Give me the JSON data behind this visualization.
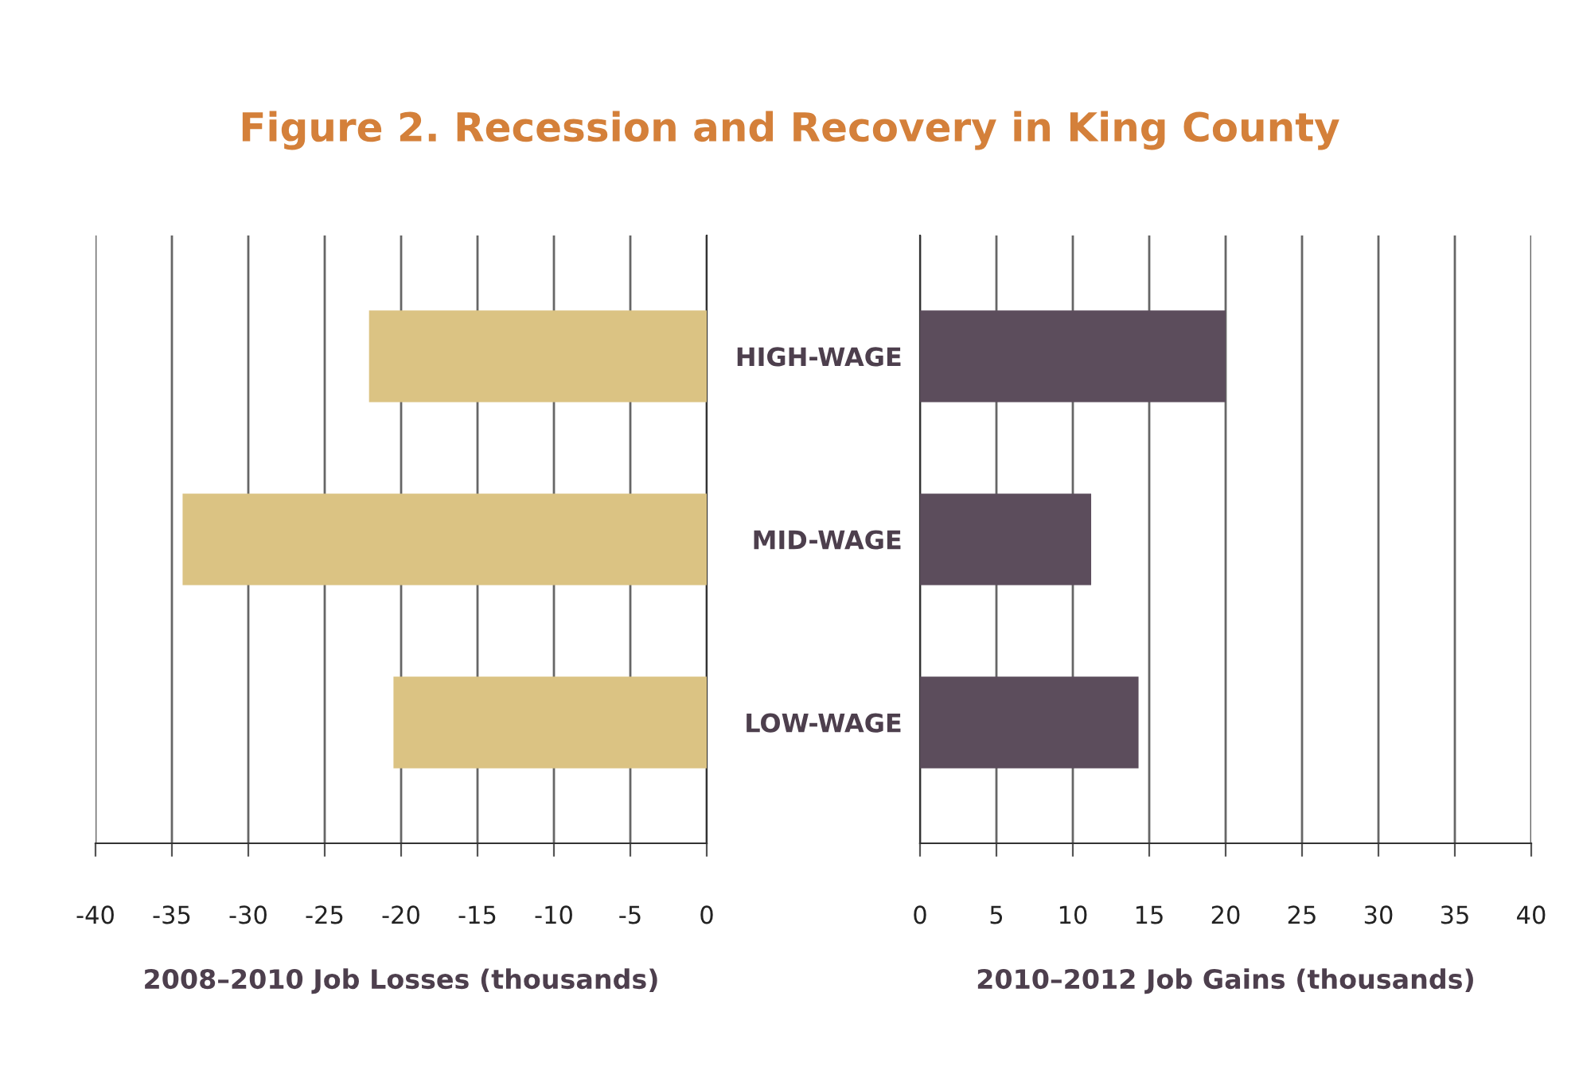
{
  "chart_data": [
    {
      "type": "bar",
      "title": "Figure 2. Recession and Recovery in King County",
      "orientation": "horizontal",
      "categories": [
        null,
        null,
        null
      ],
      "values": [
        -22.1,
        -34.3,
        -20.5
      ],
      "color": "#dbc383",
      "xlim": [
        -40,
        0
      ],
      "xticks": [
        -40,
        -35,
        -30,
        -25,
        -20,
        -15,
        -10,
        -5,
        0
      ],
      "xlabel": "2008–2010 Job Losses (thousands)",
      "grid": "x"
    },
    {
      "type": "bar",
      "orientation": "horizontal",
      "categories": [
        "HIGH-WAGE",
        "MID-WAGE",
        "LOW-WAGE"
      ],
      "values": [
        20.0,
        11.2,
        14.3
      ],
      "color": "#5c4d5c",
      "xlim": [
        0,
        40
      ],
      "xticks": [
        0,
        5,
        10,
        15,
        20,
        25,
        30,
        35,
        40
      ],
      "xlabel": "2010–2012 Job Gains (thousands)",
      "grid": "x"
    }
  ]
}
